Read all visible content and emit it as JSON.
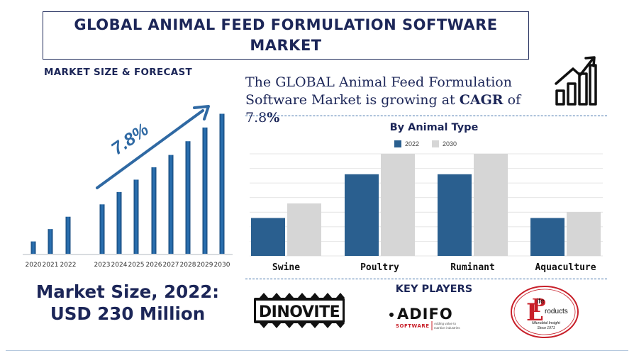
{
  "title": "GLOBAL ANIMAL FEED FORMULATION SOFTWARE MARKET",
  "market_size_heading": "MARKET SIZE & FORECAST",
  "cagr_sentence": {
    "prefix": "The GLOBAL Animal Feed Formulation Software Market is growing at ",
    "cagr_word": "CAGR",
    "of": " of ",
    "rate": "7.8",
    "percent": "%"
  },
  "market_size_line1": "Market Size, 2022:",
  "market_size_line2": "USD 230 Million",
  "key_players_heading": "KEY PLAYERS",
  "logos": {
    "dinovite": "DINOVITE",
    "adifo_name": "ADIFO",
    "adifo_software": "SOFTWARE",
    "adifo_tagline_1": "Adding value to",
    "adifo_tagline_2": "nutrition industries",
    "life_products_1": "ife",
    "life_products_2": "roducts",
    "life_products_3": "Microbial Insight",
    "life_products_4": "Since 1971"
  },
  "icons": [
    "growth-chart-icon",
    "trend-arrow-icon"
  ],
  "colors": {
    "navy": "#1c2658",
    "bar_2022": "#2a5f8f",
    "bar_2030": "#d6d6d6",
    "forecast_bar": "#1f5b94",
    "dash": "#3b6ea8",
    "arrow": "#2f69a3"
  },
  "chart_data": [
    {
      "type": "bar",
      "title": "",
      "annotation": "7.8%",
      "categories": [
        "2020",
        "2021",
        "2022",
        "2023",
        "2024",
        "2025",
        "2026",
        "2027",
        "2028",
        "2029",
        "2030"
      ],
      "values": [
        9,
        18,
        27,
        36,
        45,
        54,
        63,
        72,
        82,
        92,
        102
      ],
      "ylim": [
        0,
        110
      ],
      "grid": false,
      "legend": "none"
    },
    {
      "type": "bar",
      "title": "By Animal Type",
      "categories": [
        "Swine",
        "Poultry",
        "Ruminant",
        "Aquaculture"
      ],
      "series": [
        {
          "name": "2022",
          "values": [
            26,
            56,
            56,
            26
          ]
        },
        {
          "name": "2030",
          "values": [
            36,
            70,
            70,
            30
          ]
        }
      ],
      "ylim": [
        0,
        70
      ],
      "grid": true,
      "legend": "top"
    }
  ]
}
